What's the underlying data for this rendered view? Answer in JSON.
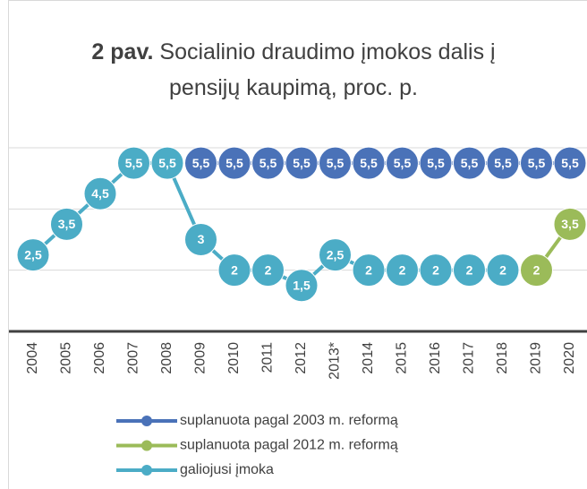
{
  "chart_data": {
    "type": "line",
    "title_label": "2 pav.",
    "title": "Socialinio draudimo įmokos dalis į pensijų kaupimą, proc. p.",
    "categories": [
      "2004",
      "2005",
      "2006",
      "2007",
      "2008",
      "2009",
      "2010",
      "2011",
      "2012",
      "2013*",
      "2014",
      "2015",
      "2016",
      "2017",
      "2018",
      "2019",
      "2020"
    ],
    "ylim": [
      0,
      6
    ],
    "yticks": [
      0,
      2,
      4,
      6
    ],
    "grid": true,
    "series": [
      {
        "name": "suplanuota pagal 2003 m. reformą",
        "color": "#4a72b8",
        "values": [
          null,
          null,
          null,
          null,
          null,
          5.5,
          5.5,
          5.5,
          5.5,
          5.5,
          5.5,
          5.5,
          5.5,
          5.5,
          5.5,
          5.5,
          5.5
        ],
        "value_labels": [
          null,
          null,
          null,
          null,
          null,
          "5,5",
          "5,5",
          "5,5",
          "5,5",
          "5,5",
          "5,5",
          "5,5",
          "5,5",
          "5,5",
          "5,5",
          "5,5",
          "5,5"
        ]
      },
      {
        "name": "suplanuota pagal 2012 m. reformą",
        "color": "#9bbb59",
        "values": [
          null,
          null,
          null,
          null,
          null,
          null,
          null,
          null,
          null,
          null,
          null,
          null,
          null,
          null,
          null,
          2,
          3.5
        ],
        "value_labels": [
          null,
          null,
          null,
          null,
          null,
          null,
          null,
          null,
          null,
          null,
          null,
          null,
          null,
          null,
          null,
          "2",
          "3,5"
        ]
      },
      {
        "name": "galiojusi įmoka",
        "color": "#4bacc6",
        "values": [
          2.5,
          3.5,
          4.5,
          5.5,
          5.5,
          3,
          2,
          2,
          1.5,
          2.5,
          2,
          2,
          2,
          2,
          2,
          null,
          null
        ],
        "value_labels": [
          "2,5",
          "3,5",
          "4,5",
          "5,5",
          "5,5",
          "3",
          "2",
          "2",
          "1,5",
          "2,5",
          "2",
          "2",
          "2",
          "2",
          "2",
          null,
          null
        ]
      }
    ]
  }
}
